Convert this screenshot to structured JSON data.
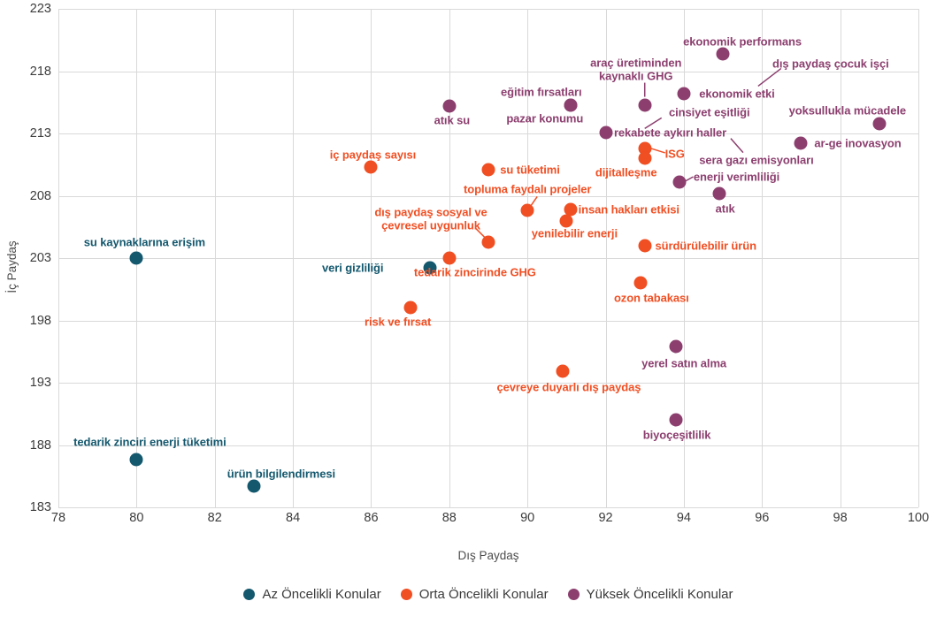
{
  "chart_data": {
    "type": "scatter",
    "title": "",
    "xlabel": "Dış Paydaş",
    "ylabel": "İç Paydaş",
    "xlim": [
      78,
      100
    ],
    "xtick_step": 2,
    "ylim": [
      183,
      223
    ],
    "ytick_step": 5,
    "grid": true,
    "legend_position": "bottom",
    "grid_color": "#d9d9d9",
    "series": [
      {
        "name": "Az Öncelikli Konular",
        "color": "#14586E",
        "points": [
          {
            "label": "su kaynaklarına erişim",
            "x": 80,
            "y": 203,
            "label_dx": 9,
            "label_dy": -18
          },
          {
            "label": "veri gizliliği",
            "x": 87.5,
            "y": 202.2,
            "label_dx": -87,
            "label_dy": 0
          },
          {
            "label": "tedarik zinciri enerji tüketimi",
            "x": 80,
            "y": 186.8,
            "label_dx": 15,
            "label_dy": -20
          },
          {
            "label": "ürün bilgilendirmesi",
            "x": 83,
            "y": 184.7,
            "label_dx": 31,
            "label_dy": -14
          }
        ]
      },
      {
        "name": "Orta Öncelikli Konular",
        "color": "#F04F23",
        "points": [
          {
            "label": "iç paydaş sayısı",
            "x": 86,
            "y": 210.3,
            "label_dx": 2,
            "label_dy": -14
          },
          {
            "label": "su tüketimi",
            "x": 89,
            "y": 210.1,
            "label_dx": 47,
            "label_dy": 0
          },
          {
            "label": "topluma faydalı projeler",
            "x": 90,
            "y": 206.8,
            "label_dx": 0,
            "label_dy": -24,
            "leader": [
              2,
              -3,
              11,
              -16
            ]
          },
          {
            "label": "dış paydaş sosyal ve\nçevresel uygunluk",
            "x": 89,
            "y": 204.3,
            "label_dx": -65,
            "label_dy": -26,
            "leader": [
              -2,
              -3,
              -14,
              -15
            ]
          },
          {
            "label": "insan hakları etkisi",
            "x": 91.1,
            "y": 206.9,
            "label_dx": 66,
            "label_dy": 0
          },
          {
            "label": "yenilebilir enerji",
            "x": 91,
            "y": 206,
            "label_dx": 9,
            "label_dy": 14
          },
          {
            "label": "ISG",
            "x": 93,
            "y": 211.8,
            "label_dx": 34,
            "label_dy": 6,
            "leader": [
              7,
              0,
              23,
              5
            ]
          },
          {
            "label": "dijitalleşme",
            "x": 93,
            "y": 211,
            "label_dx": -21,
            "label_dy": 16
          },
          {
            "label": "tedarik zincirinde GHG",
            "x": 88,
            "y": 203,
            "label_dx": 29,
            "label_dy": 16
          },
          {
            "label": "risk ve fırsat",
            "x": 87,
            "y": 199,
            "label_dx": -14,
            "label_dy": 16
          },
          {
            "label": "ozon tabakası",
            "x": 92.9,
            "y": 201,
            "label_dx": 12,
            "label_dy": 17
          },
          {
            "label": "sürdürülebilir ürün",
            "x": 93,
            "y": 204,
            "label_dx": 69,
            "label_dy": 0
          },
          {
            "label": "çevreye duyarlı dış paydaş",
            "x": 90.9,
            "y": 193.9,
            "label_dx": 7,
            "label_dy": 18
          }
        ]
      },
      {
        "name": "Yüksek Öncelikli Konular",
        "color": "#8C3F6F",
        "points": [
          {
            "label": "atık su",
            "x": 88,
            "y": 215.2,
            "label_dx": 3,
            "label_dy": 16
          },
          {
            "label": "eğitim fırsatları",
            "x": 91.1,
            "y": 215.3,
            "label_dx": -33,
            "label_dy": -15
          },
          {
            "label": "pazar konumu",
            "x": 91.1,
            "y": 215.3,
            "label_dx": -29,
            "label_dy": 15
          },
          {
            "label": "araç üretiminden\nkaynaklı GHG",
            "x": 93,
            "y": 215.3,
            "label_dx": -10,
            "label_dy": -40,
            "leader": [
              0,
              -9,
              0,
              -25
            ]
          },
          {
            "label": "ekonomik performans",
            "x": 95,
            "y": 219.4,
            "label_dx": 22,
            "label_dy": -14
          },
          {
            "label": "ekonomik etki",
            "x": 94,
            "y": 216.2,
            "label_dx": 60,
            "label_dy": 0
          },
          {
            "label": "dış paydaş çocuk işçi",
            "x": 95.9,
            "y": 216.8,
            "label_dx": 82,
            "label_dy": -25,
            "hidden": true,
            "leader": [
              0,
              0,
              26,
              -20
            ]
          },
          {
            "label": "cinsiyet eşitliği",
            "x": 93,
            "y": 213.4,
            "label_dx": 73,
            "label_dy": -18,
            "hidden": true,
            "leader": [
              0,
              0,
              19,
              -12
            ]
          },
          {
            "label": "rekabete aykırı haller",
            "x": 92,
            "y": 213.1,
            "label_dx": 73,
            "label_dy": 0
          },
          {
            "label": "sera gazı emisyonları",
            "x": 95.2,
            "y": 212.6,
            "label_dx": 29,
            "label_dy": 24,
            "hidden": true,
            "leader": [
              0,
              0,
              14,
              16
            ]
          },
          {
            "label": "yoksullukla mücadele",
            "x": 99,
            "y": 213.8,
            "label_dx": -36,
            "label_dy": -15
          },
          {
            "label": "ar-ge inovasyon",
            "x": 97,
            "y": 212.2,
            "label_dx": 64,
            "label_dy": 0
          },
          {
            "label": "enerji verimliliği",
            "x": 93.9,
            "y": 209.1,
            "label_dx": 64,
            "label_dy": -6,
            "leader": [
              6,
              -1,
              15,
              -6
            ]
          },
          {
            "label": "atık",
            "x": 94.9,
            "y": 208.2,
            "label_dx": 7,
            "label_dy": 17
          },
          {
            "label": "yerel satın alma",
            "x": 93.8,
            "y": 195.9,
            "label_dx": 9,
            "label_dy": 19
          },
          {
            "label": "biyoçeşitlilik",
            "x": 93.8,
            "y": 190,
            "label_dx": 1,
            "label_dy": 17
          }
        ]
      }
    ]
  }
}
